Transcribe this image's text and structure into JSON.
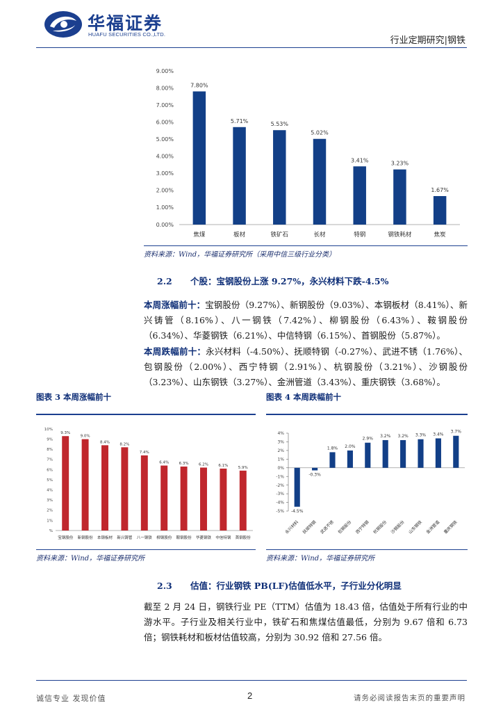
{
  "header": {
    "logo_cn": "华福证券",
    "logo_en": "HUAFU SECURITIES CO.,LTD.",
    "report_type": "行业定期研究|钢铁"
  },
  "figure2": {
    "source": "资料来源：Wind，华福证券研究所（采用中信三级行业分类）",
    "chart_data": {
      "type": "bar",
      "categories": [
        "焦煤",
        "板材",
        "铁矿石",
        "长材",
        "特钢",
        "钢铁耗材",
        "焦炭"
      ],
      "values": [
        7.8,
        5.71,
        5.53,
        5.02,
        3.41,
        3.23,
        1.67
      ],
      "value_labels": [
        "7.80%",
        "5.71%",
        "5.53%",
        "5.02%",
        "3.41%",
        "3.23%",
        "1.67%"
      ],
      "ylim": [
        0,
        9
      ],
      "yticks": [
        "0.00%",
        "1.00%",
        "2.00%",
        "3.00%",
        "4.00%",
        "5.00%",
        "6.00%",
        "7.00%",
        "8.00%",
        "9.00%"
      ],
      "color": "#123f87"
    }
  },
  "section22": {
    "num": "2.2",
    "title": "个股：宝钢股份上涨 9.27%，永兴材料下跌-4.5%",
    "gainers_lead": "本周涨幅前十：",
    "gainers_text": "宝钢股份（9.27%）、新钢股份（9.03%）、本钢板材（8.41%）、新兴铸管（8.16%）、八一钢铁（7.42%）、柳钢股份（6.43%）、鞍钢股份（6.34%）、华菱钢铁（6.21%）、中信特钢（6.15%）、首钢股份（5.87%）。",
    "losers_lead": "本周跌幅前十：",
    "losers_text": "永兴材料（-4.50%）、抚顺特钢（-0.27%）、武进不锈（1.76%）、包钢股份（2.00%）、西宁特钢（2.91%）、杭钢股份（3.21%）、沙钢股份（3.23%）、山东钢铁（3.27%）、金洲管道（3.43%）、重庆钢铁（3.68%）。"
  },
  "figure3": {
    "caption": "图表 3  本周涨幅前十",
    "source": "资料来源：Wind，华福证券研究所",
    "chart_data": {
      "type": "bar",
      "categories": [
        "宝钢股份",
        "新钢股份",
        "本钢板材",
        "新兴铸管",
        "八一钢铁",
        "柳钢股份",
        "鞍钢股份",
        "华菱钢铁",
        "中信特钢",
        "首钢股份"
      ],
      "values": [
        9.3,
        9.0,
        8.4,
        8.2,
        7.4,
        6.4,
        6.3,
        6.2,
        6.1,
        5.9
      ],
      "value_labels": [
        "9.3%",
        "9.0%",
        "8.4%",
        "8.2%",
        "7.4%",
        "6.4%",
        "6.3%",
        "6.2%",
        "6.1%",
        "5.9%"
      ],
      "ylim": [
        0,
        10
      ],
      "yticks": [
        "%",
        "1%",
        "2%",
        "3%",
        "4%",
        "5%",
        "6%",
        "7%",
        "8%",
        "9%",
        "10%"
      ],
      "color": "#c0272d"
    }
  },
  "figure4": {
    "caption": "图表 4  本周跌幅前十",
    "source": "资料来源：Wind，华福证券研究所",
    "chart_data": {
      "type": "bar",
      "categories": [
        "永兴材料",
        "抚顺特钢",
        "武进不锈",
        "包钢股份",
        "西宁特钢",
        "杭钢股份",
        "沙钢股份",
        "山东钢铁",
        "金洲管道",
        "重庆钢铁"
      ],
      "values": [
        -4.5,
        -0.3,
        1.8,
        2.0,
        2.9,
        3.2,
        3.2,
        3.3,
        3.4,
        3.7
      ],
      "value_labels": [
        "-4.5%",
        "-0.3%",
        "1.8%",
        "2.0%",
        "2.9%",
        "3.2%",
        "3.2%",
        "3.3%",
        "3.4%",
        "3.7%"
      ],
      "ylim": [
        -5,
        4
      ],
      "yticks": [
        "-5%",
        "-4%",
        "-3%",
        "-2%",
        "-1%",
        "0%",
        "1%",
        "2%",
        "3%",
        "4%"
      ],
      "color": "#123f87"
    }
  },
  "section23": {
    "num": "2.3",
    "title": "估值：行业钢铁 PB(LF)估值低水平，子行业分化明显",
    "text": "截至 2 月 24 日，钢铁行业 PE（TTM）估值为 18.43 倍，估值处于所有行业的中游水平。子行业及相关行业中，铁矿石和焦煤估值最低，分别为 9.67 倍和 6.73 倍；钢铁耗材和板材估值较高，分别为 30.92 倍和 27.56 倍。"
  },
  "footer": {
    "left": "诚信专业  发现价值",
    "page": "2",
    "right": "请务必阅读报告末页的重要声明"
  }
}
